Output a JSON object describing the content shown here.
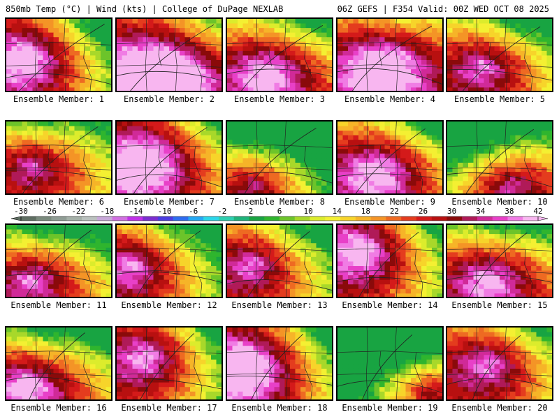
{
  "header": {
    "left": "850mb Temp (°C) | Wind (kts) | College of DuPage NEXLAB",
    "right": "06Z GEFS | F354 Valid: 00Z WED OCT 08 2025"
  },
  "members": [
    {
      "label": "Ensemble Member: 1",
      "hot": [
        0.2,
        0.55
      ],
      "cold": [
        0.9,
        0.05
      ],
      "bias": 0.55
    },
    {
      "label": "Ensemble Member: 2",
      "hot": [
        0.45,
        0.8
      ],
      "cold": [
        0.92,
        0.05
      ],
      "bias": 0.85
    },
    {
      "label": "Ensemble Member: 3",
      "hot": [
        0.4,
        0.75
      ],
      "cold": [
        0.7,
        0.05
      ],
      "bias": 0.6
    },
    {
      "label": "Ensemble Member: 4",
      "hot": [
        0.45,
        0.65
      ],
      "cold": [
        0.6,
        0.0
      ],
      "bias": 0.75
    },
    {
      "label": "Ensemble Member: 5",
      "hot": [
        0.35,
        0.65
      ],
      "cold": [
        0.7,
        0.0
      ],
      "bias": 0.45
    },
    {
      "label": "Ensemble Member: 6",
      "hot": [
        0.25,
        0.6
      ],
      "cold": [
        0.3,
        0.0
      ],
      "bias": 0.45
    },
    {
      "label": "Ensemble Member: 7",
      "hot": [
        0.3,
        0.55
      ],
      "cold": [
        0.95,
        0.0
      ],
      "bias": 0.65
    },
    {
      "label": "Ensemble Member: 8",
      "hot": [
        0.25,
        0.9
      ],
      "cold": [
        0.6,
        0.05
      ],
      "bias": 0.25
    },
    {
      "label": "Ensemble Member: 9",
      "hot": [
        0.4,
        0.7
      ],
      "cold": [
        0.9,
        0.0
      ],
      "bias": 0.55
    },
    {
      "label": "Ensemble Member: 10",
      "hot": [
        0.6,
        0.9
      ],
      "cold": [
        0.25,
        0.2
      ],
      "bias": 0.35
    },
    {
      "label": "Ensemble Member: 11",
      "hot": [
        0.25,
        0.75
      ],
      "cold": [
        0.4,
        0.0
      ],
      "bias": 0.45
    },
    {
      "label": "Ensemble Member: 12",
      "hot": [
        0.15,
        0.55
      ],
      "cold": [
        0.55,
        0.0
      ],
      "bias": 0.5
    },
    {
      "label": "Ensemble Member: 13",
      "hot": [
        0.25,
        0.55
      ],
      "cold": [
        0.65,
        0.1
      ],
      "bias": 0.5
    },
    {
      "label": "Ensemble Member: 14",
      "hot": [
        0.25,
        0.35
      ],
      "cold": [
        0.85,
        0.05
      ],
      "bias": 0.6
    },
    {
      "label": "Ensemble Member: 15",
      "hot": [
        0.4,
        0.75
      ],
      "cold": [
        0.55,
        0.0
      ],
      "bias": 0.55
    },
    {
      "label": "Ensemble Member: 16",
      "hot": [
        0.2,
        0.8
      ],
      "cold": [
        0.4,
        0.0
      ],
      "bias": 0.55
    },
    {
      "label": "Ensemble Member: 17",
      "hot": [
        0.3,
        0.4
      ],
      "cold": [
        0.9,
        0.05
      ],
      "bias": 0.5
    },
    {
      "label": "Ensemble Member: 18",
      "hot": [
        0.2,
        0.55
      ],
      "cold": [
        0.95,
        0.1
      ],
      "bias": 0.65
    },
    {
      "label": "Ensemble Member: 19",
      "hot": [
        0.9,
        0.9
      ],
      "cold": [
        0.55,
        0.05
      ],
      "bias": 0.15
    },
    {
      "label": "Ensemble Member: 20",
      "hot": [
        0.4,
        0.5
      ],
      "cold": [
        0.8,
        0.0
      ],
      "bias": 0.5
    }
  ],
  "colorbar": {
    "labels": [
      "-30",
      "-26",
      "-22",
      "-18",
      "-14",
      "-10",
      "-6",
      "-2",
      "2",
      "6",
      "10",
      "14",
      "18",
      "22",
      "26",
      "30",
      "34",
      "38",
      "42"
    ],
    "colors": [
      "#5f6e62",
      "#7a8a7d",
      "#8f9c94",
      "#a5b0a8",
      "#bac1be",
      "#c8a8d8",
      "#d070e0",
      "#c030e8",
      "#7b2dd0",
      "#4a3ce0",
      "#2e6cf0",
      "#24a8f4",
      "#2bd6ea",
      "#2ecfb0",
      "#1fb37a",
      "#18a442",
      "#2fb52e",
      "#6cc42a",
      "#a8d82a",
      "#dcec2c",
      "#f4f032",
      "#f7d42a",
      "#f6b428",
      "#f49426",
      "#ee6a22",
      "#e43c1e",
      "#d41a1a",
      "#b81010",
      "#8a0a0a",
      "#b01a58",
      "#d02a98",
      "#e840c8",
      "#f07ce4",
      "#f8b6f0"
    ]
  }
}
